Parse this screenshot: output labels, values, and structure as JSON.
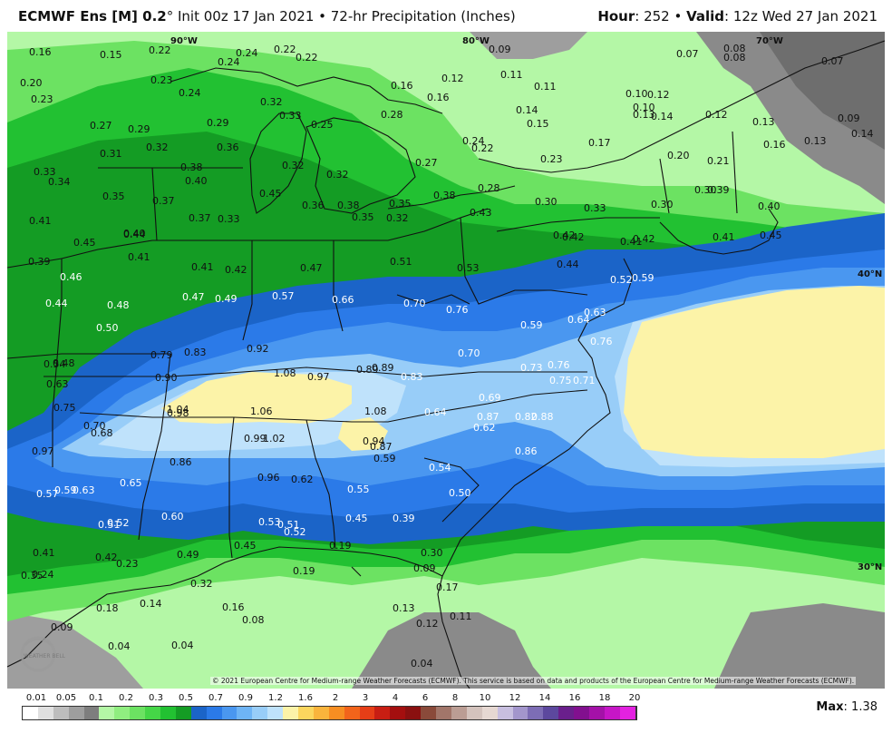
{
  "header": {
    "model": "ECMWF Ens [M] 0.2",
    "degree": "°",
    "init": " Init 00z 17 Jan 2021 • 72-hr Precipitation (Inches)",
    "hour_label": "Hour",
    "hour_value": ": 252 •",
    "valid_label": "Valid",
    "valid_value": ": 12z Wed 27 Jan 2021"
  },
  "map": {
    "lat_lon_labels": [
      "90°W",
      "80°W",
      "70°W",
      "40°N",
      "30°N"
    ],
    "credit": "© 2021 European Centre for Medium-range Weather Forecasts (ECMWF). This service is based on data and products of the European Centre for Medium-range Weather Forecasts (ECMWF).",
    "logo_text": "WEATHER BELL",
    "values": [
      "0.16",
      "0.15",
      "0.22",
      "0.24",
      "0.22",
      "0.22",
      "0.09",
      "0.07",
      "0.08",
      "0.08",
      "0.07",
      "0.20",
      "0.23",
      "0.23",
      "0.24",
      "0.24",
      "0.16",
      "0.12",
      "0.11",
      "0.11",
      "0.16",
      "0.10",
      "0.12",
      "0.10",
      "0.27",
      "0.29",
      "0.29",
      "0.32",
      "0.33",
      "0.25",
      "0.28",
      "0.14",
      "0.15",
      "0.13",
      "0.14",
      "0.12",
      "0.13",
      "0.09",
      "0.31",
      "0.32",
      "0.36",
      "0.24",
      "0.22",
      "0.17",
      "0.16",
      "0.13",
      "0.14",
      "0.33",
      "0.34",
      "0.38",
      "0.40",
      "0.32",
      "0.32",
      "0.27",
      "0.23",
      "0.20",
      "0.21",
      "0.35",
      "0.37",
      "0.45",
      "0.28",
      "0.30",
      "0.33",
      "0.30",
      "0.30",
      "0.39",
      "0.41",
      "0.40",
      "0.37",
      "0.33",
      "0.36",
      "0.38",
      "0.35",
      "0.32",
      "0.35",
      "0.38",
      "0.43",
      "0.42",
      "0.41",
      "0.40",
      "0.45",
      "0.44",
      "0.42",
      "0.42",
      "0.41",
      "0.45",
      "0.39",
      "0.41",
      "0.41",
      "0.42",
      "0.47",
      "0.51",
      "0.53",
      "0.44",
      "0.52",
      "0.59",
      "0.46",
      "0.44",
      "0.48",
      "0.47",
      "0.49",
      "0.57",
      "0.66",
      "0.70",
      "0.76",
      "0.59",
      "0.64",
      "0.63",
      "0.50",
      "0.79",
      "0.83",
      "0.92",
      "0.70",
      "0.76",
      "0.76",
      "0.54",
      "0.48",
      "0.90",
      "1.08",
      "0.97",
      "0.89",
      "0.89",
      "0.83",
      "0.73",
      "0.75",
      "0.71",
      "0.63",
      "0.75",
      "1.04",
      "0.98",
      "1.06",
      "1.08",
      "0.69",
      "0.87",
      "0.88",
      "0.70",
      "0.68",
      "0.64",
      "0.62",
      "0.82",
      "0.97",
      "0.99",
      "1.02",
      "0.94",
      "0.87",
      "0.59",
      "0.86",
      "0.86",
      "0.96",
      "0.62",
      "0.54",
      "0.57",
      "0.59",
      "0.63",
      "0.65",
      "0.55",
      "0.50",
      "0.51",
      "0.52",
      "0.60",
      "0.53",
      "0.51",
      "0.52",
      "0.45",
      "0.39",
      "0.41",
      "0.42",
      "0.49",
      "0.45",
      "0.19",
      "0.30",
      "0.35",
      "0.24",
      "0.23",
      "0.32",
      "0.19",
      "0.09",
      "0.17",
      "0.18",
      "0.14",
      "0.16",
      "0.13",
      "0.09",
      "0.08",
      "0.12",
      "0.11",
      "0.04",
      "0.04",
      "0.04"
    ]
  },
  "colorbar": {
    "labels": [
      "0.01",
      "0.05",
      "0.1",
      "0.2",
      "0.3",
      "0.5",
      "0.7",
      "0.9",
      "1.2",
      "1.6",
      "2",
      "3",
      "4",
      "6",
      "8",
      "10",
      "12",
      "14",
      "16",
      "18",
      "20"
    ],
    "colors": [
      "#ffffff",
      "#e0e0e0",
      "#bdbdbd",
      "#9e9e9e",
      "#7e7e7e",
      "#b4f7a6",
      "#90ee80",
      "#6ce262",
      "#45d647",
      "#22c132",
      "#149c24",
      "#1b64c8",
      "#2b7ae8",
      "#4a97f0",
      "#6eb4f5",
      "#98cdf8",
      "#bfe2fb",
      "#fcf3a8",
      "#fbd65e",
      "#f9b43c",
      "#f78e22",
      "#f2641b",
      "#e63e17",
      "#c81e13",
      "#a40f0f",
      "#8a1010",
      "#8a4a3a",
      "#a2766a",
      "#bb9d94",
      "#d4c3bd",
      "#e6d8d2",
      "#c8bfe0",
      "#a396cc",
      "#7d6db5",
      "#5c489e",
      "#6a1f8c",
      "#82108f",
      "#a411a8",
      "#c616c6",
      "#e322e0"
    ]
  },
  "max": {
    "label": "Max",
    "value": ": 1.38"
  },
  "colors": {
    "gray_dark": "#6e6e6e",
    "gray_mid": "#8a8a8a",
    "green_light": "#b4f7a6",
    "green_mid": "#6ce262",
    "green": "#22c132",
    "green_dark": "#149c24",
    "blue_dark": "#1b64c8",
    "blue": "#2b7ae8",
    "blue_mid": "#4a97f0",
    "blue_light": "#98cdf8",
    "blue_pale": "#bfe2fb",
    "yellow": "#fcf3a8"
  }
}
